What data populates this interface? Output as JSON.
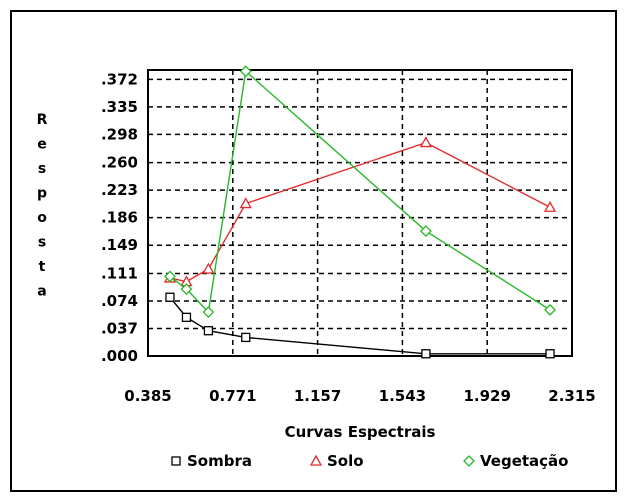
{
  "chart_data": {
    "type": "line",
    "xlabel": "Curvas Espectrais",
    "ylabel": "Resposta",
    "x_ticks": [
      "0.385",
      "0.771",
      "1.157",
      "1.543",
      "1.929",
      "2.315"
    ],
    "y_ticks": [
      ".000",
      ".037",
      ".074",
      ".111",
      ".149",
      ".186",
      ".223",
      ".260",
      ".298",
      ".335",
      ".372"
    ],
    "xlim": [
      0.385,
      2.315
    ],
    "ylim": [
      0.0,
      0.3846
    ],
    "grid": true,
    "legend_position": "bottom",
    "series": [
      {
        "name": "Sombra",
        "color": "#000000",
        "marker": "square",
        "x": [
          0.485,
          0.56,
          0.66,
          0.83,
          1.65,
          2.215
        ],
        "y": [
          0.079,
          0.052,
          0.034,
          0.025,
          0.003,
          0.003
        ]
      },
      {
        "name": "Solo",
        "color": "#e32b2b",
        "marker": "triangle",
        "x": [
          0.485,
          0.56,
          0.66,
          0.83,
          1.65,
          2.215
        ],
        "y": [
          0.105,
          0.1,
          0.117,
          0.205,
          0.287,
          0.2
        ]
      },
      {
        "name": "Vegetação",
        "color": "#28b828",
        "marker": "diamond",
        "x": [
          0.485,
          0.56,
          0.66,
          0.83,
          1.65,
          2.215
        ],
        "y": [
          0.107,
          0.09,
          0.059,
          0.383,
          0.168,
          0.062
        ]
      }
    ]
  }
}
